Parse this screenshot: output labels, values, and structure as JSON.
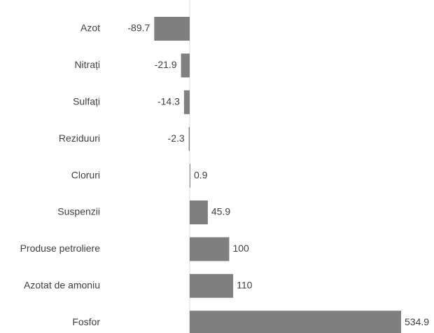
{
  "chart_data": {
    "type": "bar",
    "orientation": "horizontal",
    "categories": [
      "Azot",
      "Nitrați",
      "Sulfați",
      "Reziduuri",
      "Cloruri",
      "Suspenzii",
      "Produse petroliere",
      "Azotat de amoniu",
      "Fosfor"
    ],
    "values": [
      -89.7,
      -21.9,
      -14.3,
      -2.3,
      0.9,
      45.9,
      100,
      110,
      534.9
    ],
    "color": "#7f7f7f",
    "xlim": [
      -100,
      540
    ],
    "grid": false
  }
}
